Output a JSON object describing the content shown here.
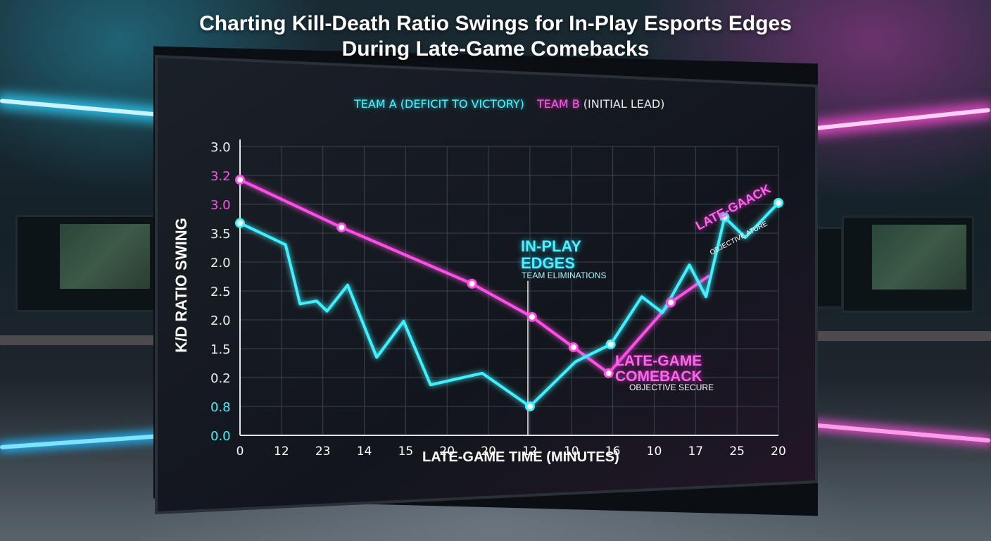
{
  "title_line1": "Charting Kill-Death Ratio Swings for In-Play Esports Edges",
  "title_line2": "During Late-Game Comebacks",
  "colors": {
    "team_a": "#3ff0ff",
    "team_b": "#ff4fe6",
    "neon_cyan_glow": "#1ecde6",
    "neon_pink_glow": "#e02fcf",
    "panel_bg": "#14181e",
    "grid": "#3a4350"
  },
  "chart_data": {
    "type": "line",
    "title": "Charting Kill-Death Ratio Swings for In-Play Esports Edges During Late-Game Comebacks",
    "xlabel": "LATE-GAME TIME (MINUTES)",
    "ylabel": "K/D RATIO SWING",
    "x_ticks": [
      "0",
      "12",
      "23",
      "14",
      "15",
      "20",
      "20",
      "12",
      "10",
      "16",
      "10",
      "17",
      "25",
      "20"
    ],
    "y_ticks": [
      {
        "label": "0.0",
        "color": "cyan"
      },
      {
        "label": "0.8",
        "color": "cyan"
      },
      {
        "label": "0.2",
        "color": "white"
      },
      {
        "label": "1.5",
        "color": "white"
      },
      {
        "label": "2.0",
        "color": "white"
      },
      {
        "label": "2.5",
        "color": "white"
      },
      {
        "label": "2.0",
        "color": "white"
      },
      {
        "label": "3.5",
        "color": "white"
      },
      {
        "label": "3.0",
        "color": "pink"
      },
      {
        "label": "3.2",
        "color": "pink"
      },
      {
        "label": "3.0",
        "color": "white"
      }
    ],
    "ylim_ticks": [
      0,
      10
    ],
    "xlim_ticks": [
      0,
      13
    ],
    "grid": true,
    "legend": [
      {
        "label": "TEAM A (DEFICIT TO VICTORY)",
        "color": "team_a"
      },
      {
        "label": "TEAM B",
        "suffix": " (INITIAL LEAD)",
        "color": "team_b"
      }
    ],
    "series": [
      {
        "name": "TEAM A (DEFICIT TO VICTORY)",
        "color": "team_a",
        "points": [
          [
            0,
            7.35
          ],
          [
            1.1,
            6.6
          ],
          [
            1.45,
            4.55
          ],
          [
            1.85,
            4.65
          ],
          [
            2.1,
            4.3
          ],
          [
            2.6,
            5.2
          ],
          [
            3.3,
            2.7
          ],
          [
            3.95,
            3.95
          ],
          [
            4.6,
            1.75
          ],
          [
            5.85,
            2.15
          ],
          [
            7.0,
            1.0
          ],
          [
            8.1,
            2.55
          ],
          [
            8.95,
            3.15
          ],
          [
            9.7,
            4.8
          ],
          [
            10.2,
            4.25
          ],
          [
            10.85,
            5.9
          ],
          [
            11.25,
            4.8
          ],
          [
            11.7,
            7.55
          ],
          [
            12.2,
            6.85
          ],
          [
            13.0,
            8.05
          ]
        ],
        "markers": [
          0,
          10,
          12,
          17,
          19
        ]
      },
      {
        "name": "TEAM B",
        "color": "team_b",
        "points": [
          [
            0,
            8.85
          ],
          [
            2.45,
            7.2
          ],
          [
            5.6,
            5.25
          ],
          [
            7.05,
            4.1
          ],
          [
            8.05,
            3.05
          ],
          [
            8.9,
            2.15
          ],
          [
            10.4,
            4.6
          ],
          [
            11.3,
            5.5
          ]
        ],
        "markers": [
          0,
          1,
          2,
          3,
          4,
          5,
          6
        ]
      }
    ],
    "vline": {
      "x": 6.95,
      "from": 0,
      "to": 5.35
    },
    "annotations": [
      {
        "title": "IN-PLAY EDGES",
        "subtitle": "TEAM ELIMINATIONS",
        "color": "team_a"
      },
      {
        "title": "LATE-GAME COMEBACK",
        "subtitle": "OBJECTIVE SECURE",
        "color": "team_b"
      },
      {
        "title": "LATE-GAACK",
        "subtitle": "OBJECTIVE ATURE",
        "color": "team_b"
      }
    ]
  }
}
